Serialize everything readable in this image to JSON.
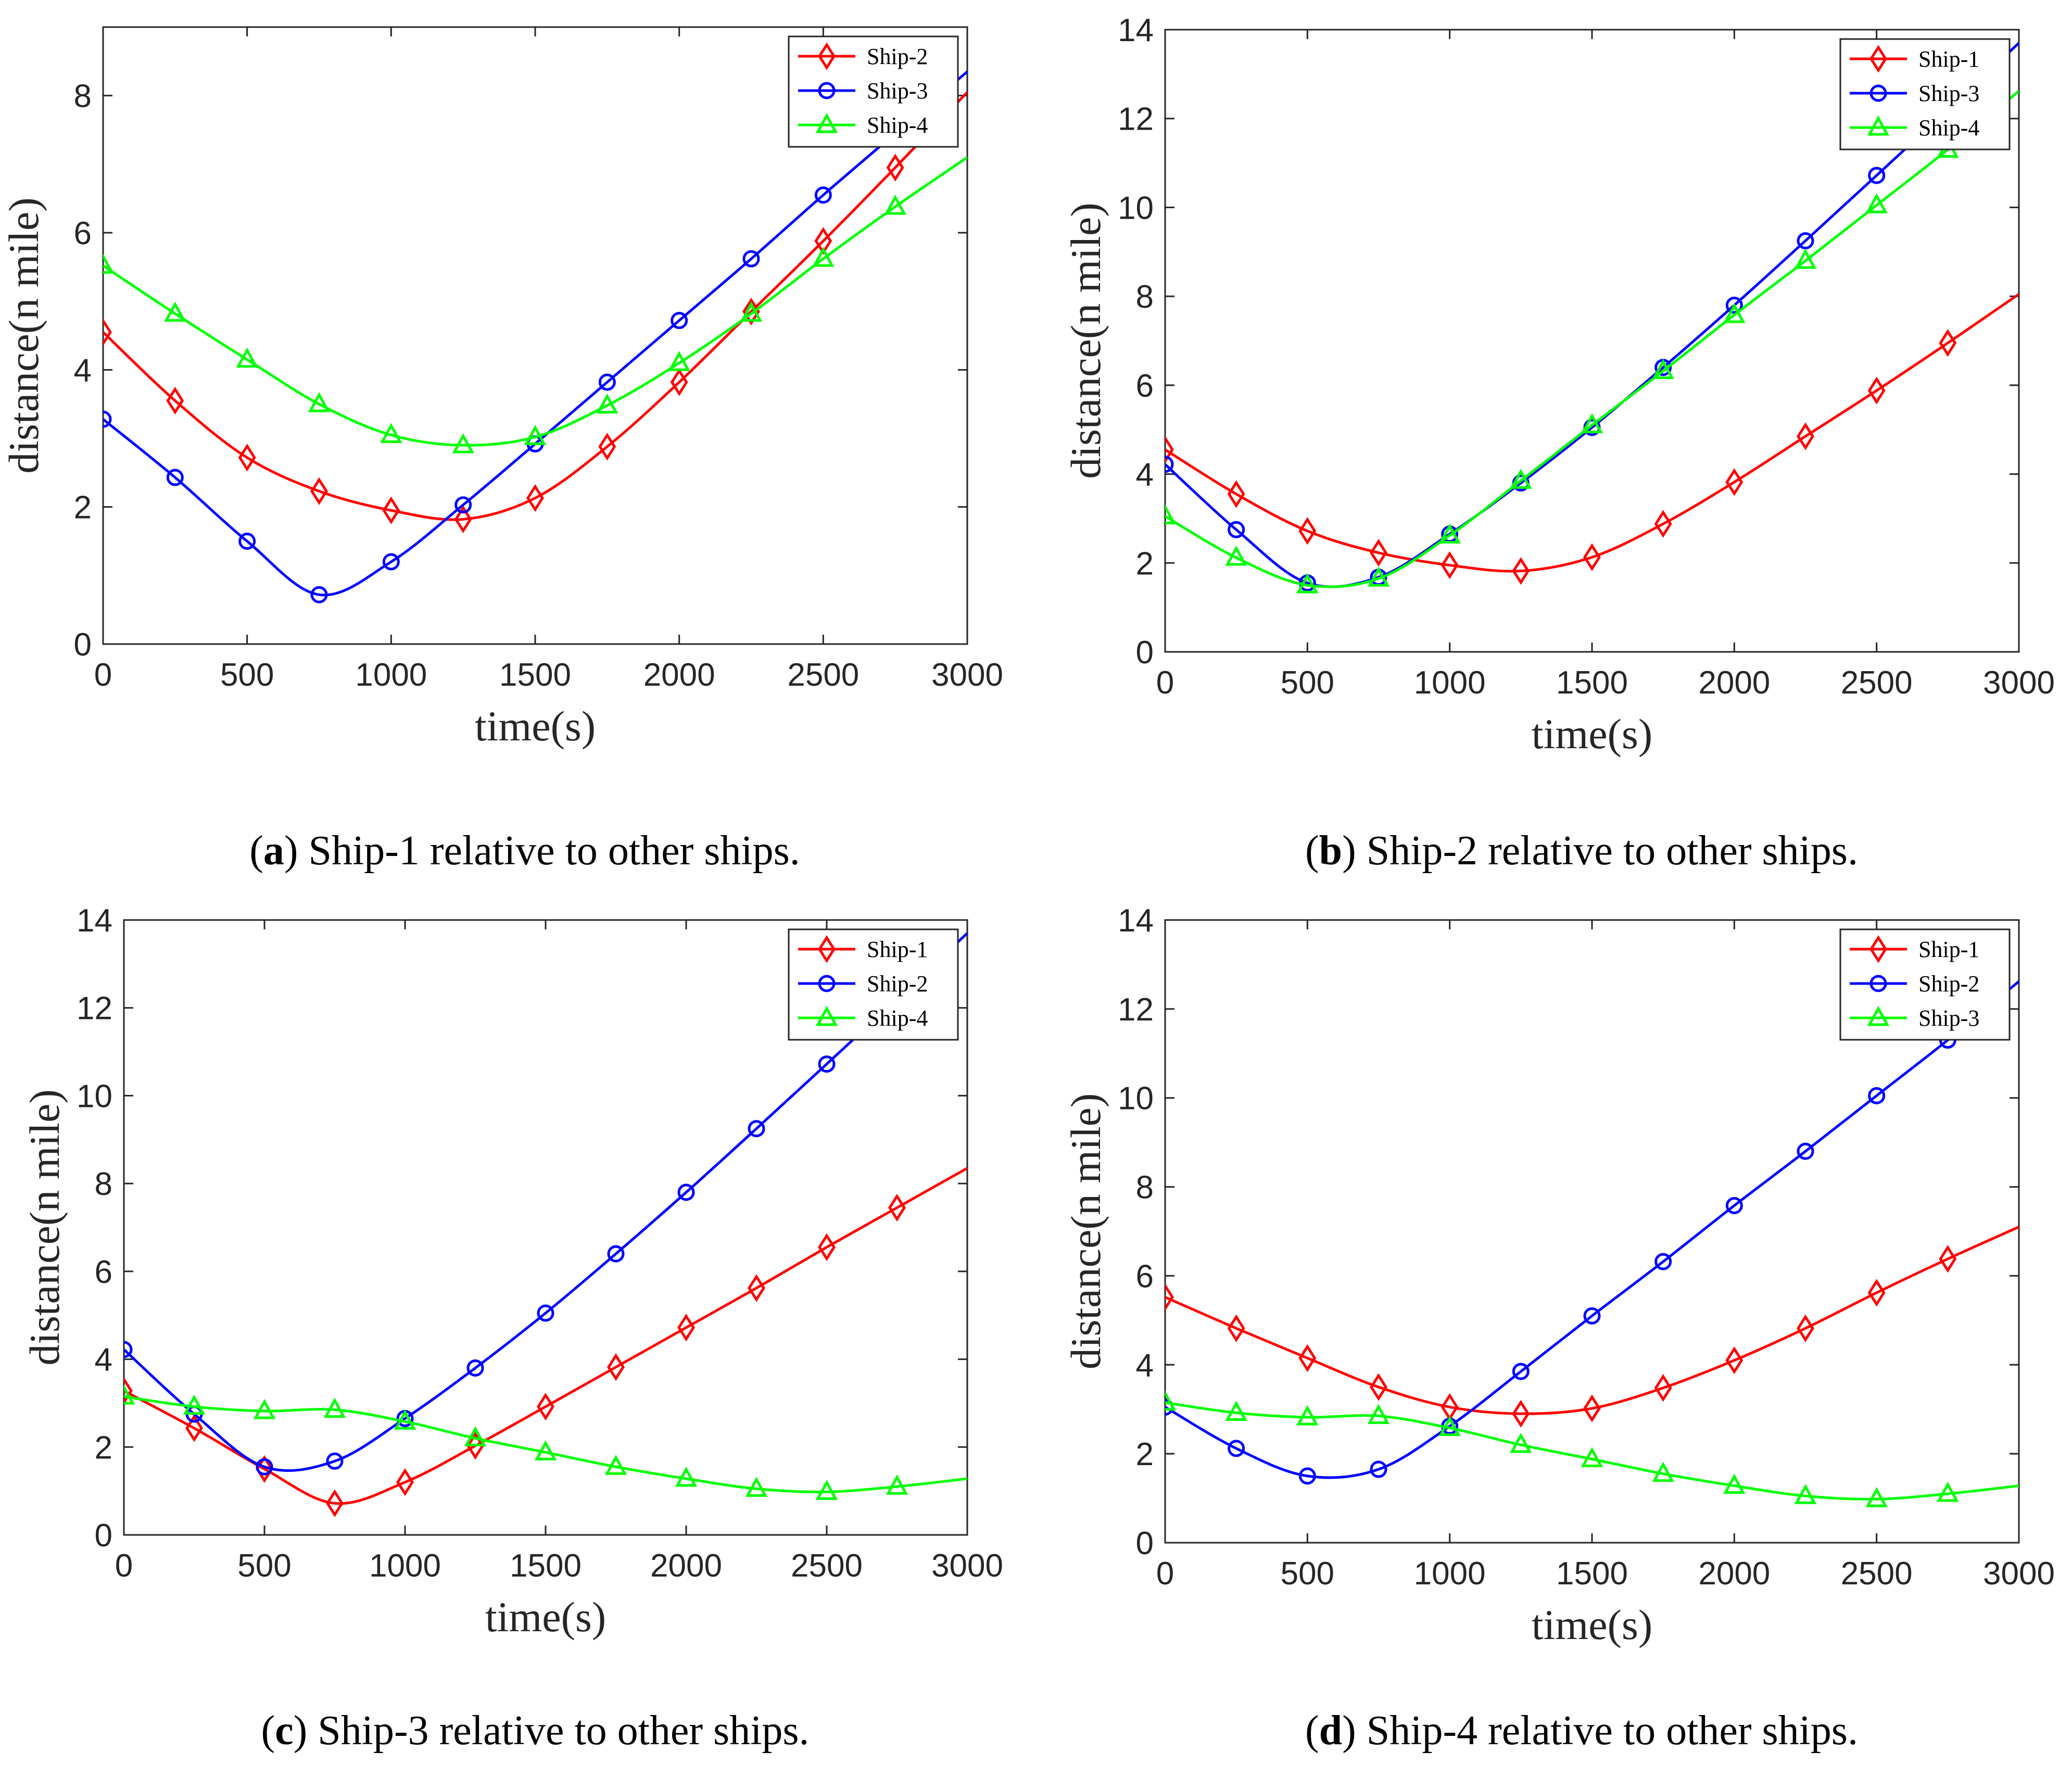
{
  "figure": {
    "subplots": [
      {
        "caption": {
          "letter": "a",
          "text": "Ship-1 relative to other ships."
        },
        "axes": {
          "xlabel": "time(s)",
          "ylabel": "distance(n mile)"
        },
        "legend_labels": [
          "Ship-2",
          "Ship-3",
          "Ship-4"
        ]
      },
      {
        "caption": {
          "letter": "b",
          "text": "Ship-2 relative to other ships."
        },
        "axes": {
          "xlabel": "time(s)",
          "ylabel": "distance(n mile)"
        },
        "legend_labels": [
          "Ship-1",
          "Ship-3",
          "Ship-4"
        ]
      },
      {
        "caption": {
          "letter": "c",
          "text": "Ship-3 relative to other ships."
        },
        "axes": {
          "xlabel": "time(s)",
          "ylabel": "distance(n mile)"
        },
        "legend_labels": [
          "Ship-1",
          "Ship-2",
          "Ship-4"
        ]
      },
      {
        "caption": {
          "letter": "d",
          "text": "Ship-4 relative to other ships."
        },
        "axes": {
          "xlabel": "time(s)",
          "ylabel": "distance(n mile)"
        },
        "legend_labels": [
          "Ship-1",
          "Ship-2",
          "Ship-3"
        ]
      }
    ]
  },
  "chart_data": [
    {
      "type": "line",
      "title": "",
      "xlabel": "time(s)",
      "ylabel": "distance(n mile)",
      "xlim": [
        0,
        3000
      ],
      "ylim": [
        0,
        9
      ],
      "xticks": [
        0,
        500,
        1000,
        1500,
        2000,
        2500,
        3000
      ],
      "yticks": [
        0,
        2,
        4,
        6,
        8
      ],
      "grid": false,
      "legend": "top-right",
      "x": [
        0,
        250,
        500,
        750,
        1000,
        1250,
        1500,
        1750,
        2000,
        2250,
        2500,
        2750,
        3000
      ],
      "series": [
        {
          "name": "Ship-2",
          "color": "#ff0000",
          "marker": "diamond",
          "values": [
            4.55,
            3.55,
            2.72,
            2.23,
            1.95,
            1.82,
            2.13,
            2.88,
            3.82,
            4.85,
            5.88,
            6.95,
            8.05
          ]
        },
        {
          "name": "Ship-3",
          "color": "#0000ff",
          "marker": "circle",
          "values": [
            3.28,
            2.43,
            1.5,
            0.72,
            1.2,
            2.03,
            2.92,
            3.82,
            4.72,
            5.62,
            6.55,
            7.45,
            8.35
          ]
        },
        {
          "name": "Ship-4",
          "color": "#00ff00",
          "marker": "triangle",
          "values": [
            5.52,
            4.82,
            4.15,
            3.5,
            3.05,
            2.9,
            3.02,
            3.48,
            4.1,
            4.82,
            5.62,
            6.38,
            7.1
          ]
        }
      ]
    },
    {
      "type": "line",
      "title": "",
      "xlabel": "time(s)",
      "ylabel": "distance(n mile)",
      "xlim": [
        0,
        3000
      ],
      "ylim": [
        0,
        14
      ],
      "xticks": [
        0,
        500,
        1000,
        1500,
        2000,
        2500,
        3000
      ],
      "yticks": [
        0,
        2,
        4,
        6,
        8,
        10,
        12,
        14
      ],
      "grid": false,
      "legend": "top-right",
      "x": [
        0,
        250,
        500,
        750,
        1000,
        1250,
        1500,
        1750,
        2000,
        2250,
        2500,
        2750,
        3000
      ],
      "series": [
        {
          "name": "Ship-1",
          "color": "#ff0000",
          "marker": "diamond",
          "values": [
            4.55,
            3.55,
            2.72,
            2.23,
            1.95,
            1.82,
            2.13,
            2.88,
            3.82,
            4.85,
            5.88,
            6.95,
            8.05
          ]
        },
        {
          "name": "Ship-3",
          "color": "#0000ff",
          "marker": "circle",
          "values": [
            4.22,
            2.75,
            1.55,
            1.68,
            2.65,
            3.8,
            5.05,
            6.4,
            7.8,
            9.25,
            10.72,
            12.2,
            13.7
          ]
        },
        {
          "name": "Ship-4",
          "color": "#00ff00",
          "marker": "triangle",
          "values": [
            3.05,
            2.12,
            1.5,
            1.65,
            2.62,
            3.85,
            5.1,
            6.32,
            7.58,
            8.8,
            10.05,
            11.3,
            12.62
          ]
        }
      ]
    },
    {
      "type": "line",
      "title": "",
      "xlabel": "time(s)",
      "ylabel": "distance(n mile)",
      "xlim": [
        0,
        3000
      ],
      "ylim": [
        0,
        14
      ],
      "xticks": [
        0,
        500,
        1000,
        1500,
        2000,
        2500,
        3000
      ],
      "yticks": [
        0,
        2,
        4,
        6,
        8,
        10,
        12,
        14
      ],
      "grid": false,
      "legend": "top-right",
      "x": [
        0,
        250,
        500,
        750,
        1000,
        1250,
        1500,
        1750,
        2000,
        2250,
        2500,
        2750,
        3000
      ],
      "series": [
        {
          "name": "Ship-1",
          "color": "#ff0000",
          "marker": "diamond",
          "values": [
            3.28,
            2.43,
            1.5,
            0.72,
            1.2,
            2.03,
            2.92,
            3.82,
            4.72,
            5.62,
            6.55,
            7.45,
            8.35
          ]
        },
        {
          "name": "Ship-2",
          "color": "#0000ff",
          "marker": "circle",
          "values": [
            4.22,
            2.75,
            1.55,
            1.68,
            2.65,
            3.8,
            5.05,
            6.4,
            7.8,
            9.25,
            10.72,
            12.2,
            13.7
          ]
        },
        {
          "name": "Ship-4",
          "color": "#00ff00",
          "marker": "triangle",
          "values": [
            3.15,
            2.92,
            2.82,
            2.85,
            2.58,
            2.2,
            1.88,
            1.55,
            1.28,
            1.05,
            0.98,
            1.1,
            1.28
          ]
        }
      ]
    },
    {
      "type": "line",
      "title": "",
      "xlabel": "time(s)",
      "ylabel": "distance(n mile)",
      "xlim": [
        0,
        3000
      ],
      "ylim": [
        0,
        14
      ],
      "xticks": [
        0,
        500,
        1000,
        1500,
        2000,
        2500,
        3000
      ],
      "yticks": [
        0,
        2,
        4,
        6,
        8,
        10,
        12,
        14
      ],
      "grid": false,
      "legend": "top-right",
      "x": [
        0,
        250,
        500,
        750,
        1000,
        1250,
        1500,
        1750,
        2000,
        2250,
        2500,
        2750,
        3000
      ],
      "series": [
        {
          "name": "Ship-1",
          "color": "#ff0000",
          "marker": "diamond",
          "values": [
            5.52,
            4.82,
            4.15,
            3.5,
            3.05,
            2.9,
            3.02,
            3.48,
            4.1,
            4.82,
            5.62,
            6.38,
            7.1
          ]
        },
        {
          "name": "Ship-2",
          "color": "#0000ff",
          "marker": "circle",
          "values": [
            3.05,
            2.12,
            1.5,
            1.65,
            2.62,
            3.85,
            5.1,
            6.32,
            7.58,
            8.8,
            10.05,
            11.3,
            12.62
          ]
        },
        {
          "name": "Ship-3",
          "color": "#00ff00",
          "marker": "triangle",
          "values": [
            3.15,
            2.92,
            2.82,
            2.85,
            2.58,
            2.2,
            1.88,
            1.55,
            1.28,
            1.05,
            0.98,
            1.1,
            1.28
          ]
        }
      ]
    }
  ]
}
